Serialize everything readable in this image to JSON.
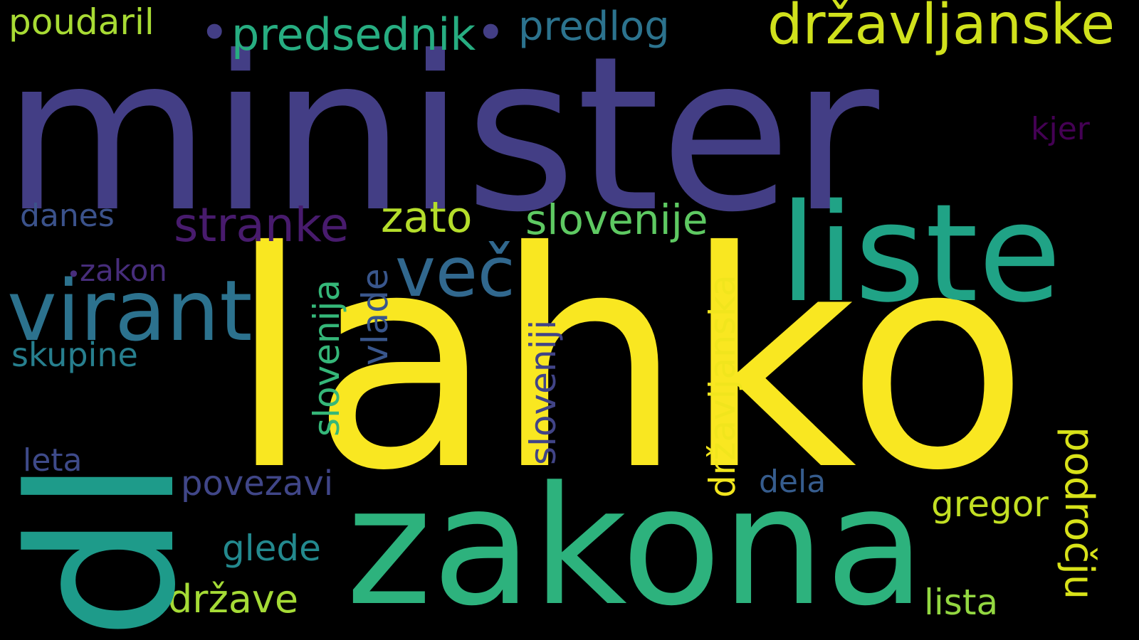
{
  "words": {
    "lahko": {
      "text": "lahko",
      "color": "#f9e721"
    },
    "minister": {
      "text": "minister",
      "color": "#433e85"
    },
    "dl": {
      "text": "dl",
      "color": "#1e9b8a"
    },
    "zakona": {
      "text": "zakona",
      "color": "#2db27d"
    },
    "liste": {
      "text": "liste",
      "color": "#20a386"
    },
    "virant": {
      "text": "virant",
      "color": "#2c728e"
    },
    "vec": {
      "text": "več",
      "color": "#31688e"
    },
    "drzavljanske": {
      "text": "državljanske",
      "color": "#d0e11c"
    },
    "predsednik": {
      "text": "predsednik",
      "color": "#27ad81"
    },
    "predlog": {
      "text": "predlog",
      "color": "#2c738e"
    },
    "poudaril": {
      "text": "poudaril",
      "color": "#a8db34"
    },
    "stranke": {
      "text": "stranke",
      "color": "#481b6d"
    },
    "zato": {
      "text": "zato",
      "color": "#b5de2b"
    },
    "slovenije": {
      "text": "slovenije",
      "color": "#5ec962"
    },
    "danes": {
      "text": "danes",
      "color": "#3b528b"
    },
    "zakon": {
      "text": "zakon",
      "color": "#472d7b"
    },
    "skupine": {
      "text": "skupine",
      "color": "#277f8e"
    },
    "slovenija": {
      "text": "slovenija",
      "color": "#35b779"
    },
    "vlade": {
      "text": "vlade",
      "color": "#39568c"
    },
    "sloveniji": {
      "text": "sloveniji",
      "color": "#414487"
    },
    "drzavljanska": {
      "text": "državljanska",
      "color": "#f1e51d"
    },
    "kjer": {
      "text": "kjer",
      "color": "#440154"
    },
    "podrocju": {
      "text": "področju",
      "color": "#d8e219"
    },
    "leta": {
      "text": "leta",
      "color": "#3e4a89"
    },
    "povezavi": {
      "text": "povezavi",
      "color": "#404688"
    },
    "dela": {
      "text": "dela",
      "color": "#365c8d"
    },
    "gregor": {
      "text": "gregor",
      "color": "#c2df23"
    },
    "glede": {
      "text": "glede",
      "color": "#23898e"
    },
    "drzave": {
      "text": "države",
      "color": "#a5db36"
    },
    "lista": {
      "text": "lista",
      "color": "#93d741"
    },
    "dot1": {
      "text": "•",
      "color": "#433e85"
    },
    "dot2": {
      "text": "•",
      "color": "#433e85"
    },
    "dot3": {
      "text": "•",
      "color": "#472d7b"
    }
  }
}
